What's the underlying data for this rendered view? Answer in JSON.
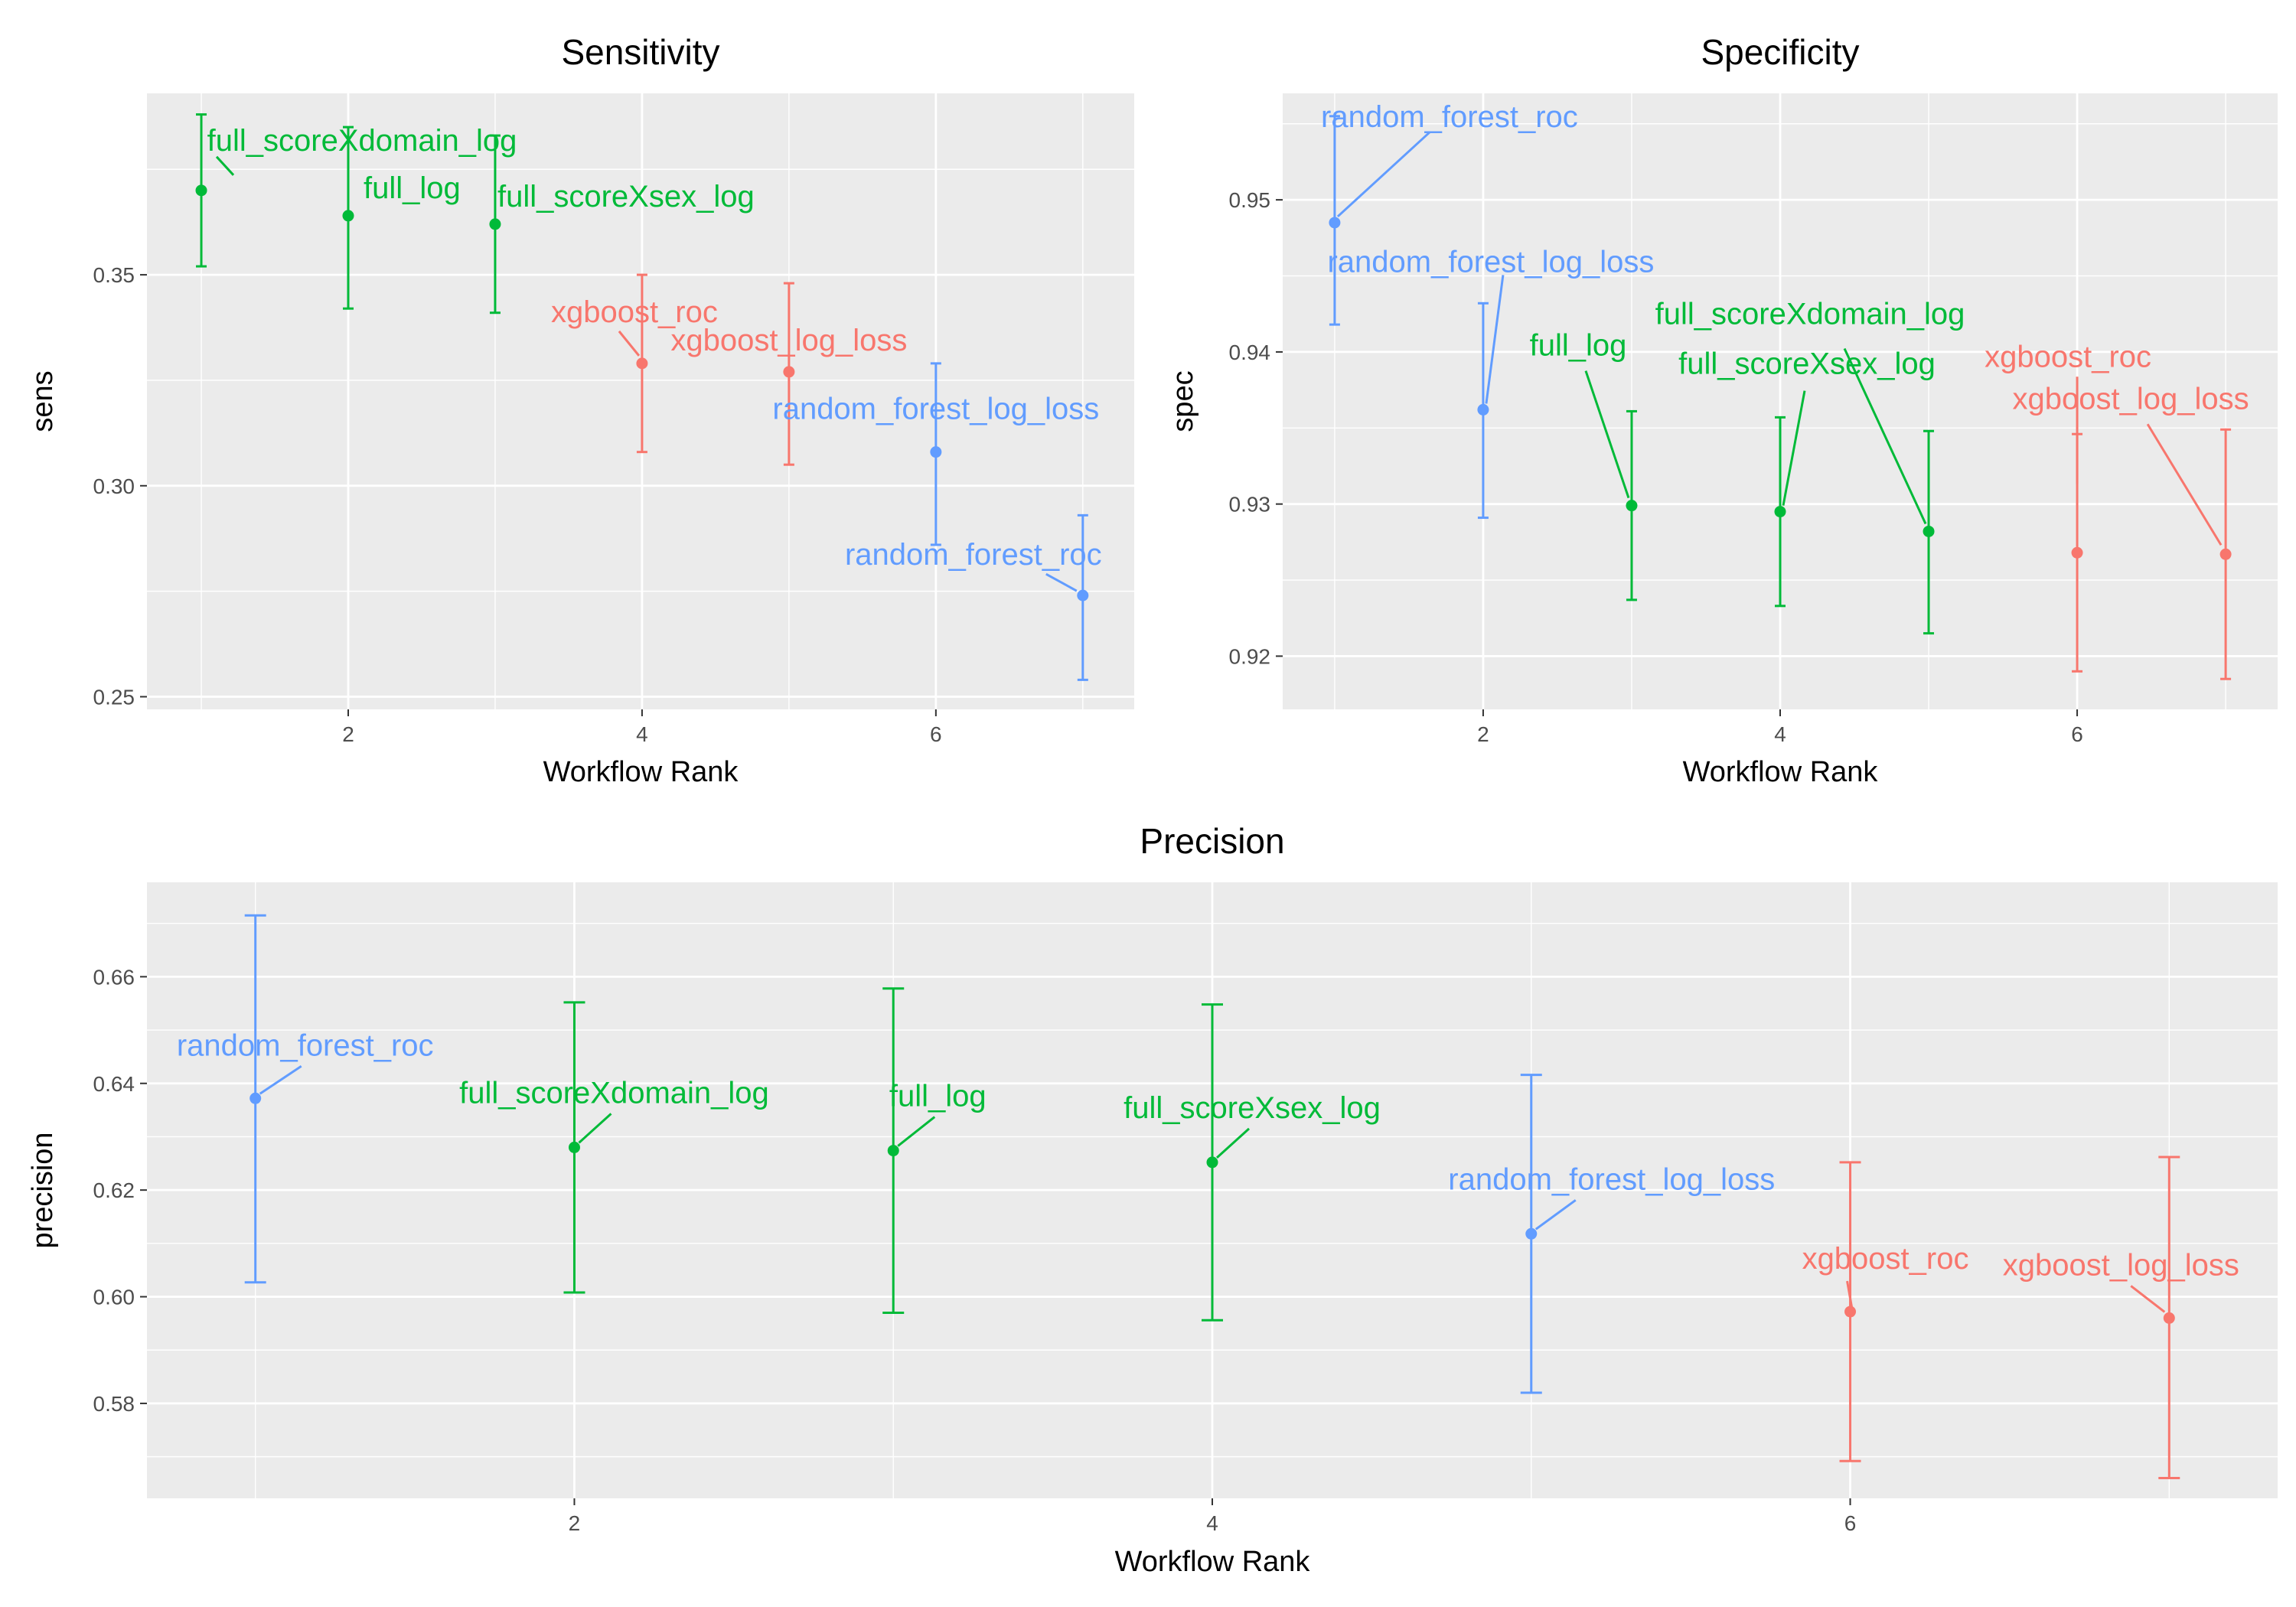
{
  "colors": {
    "panel_bg": "#EBEBEB",
    "grid": "#FFFFFF",
    "axis_text": "#4D4D4D",
    "text": "#000000",
    "model_colors": {
      "full": "#00BA38",
      "random_forest": "#619CFF",
      "xgboost": "#F8766D"
    }
  },
  "chart_data": [
    {
      "type": "scatter",
      "title": "Sensitivity",
      "xlabel": "Workflow Rank",
      "ylabel": "sens",
      "xlim": [
        0.63,
        7.35
      ],
      "ylim": [
        0.247,
        0.393
      ],
      "x_ticks": [
        2,
        4,
        6
      ],
      "x_tick_labels": [
        "2",
        "4",
        "6"
      ],
      "y_ticks": [
        0.25,
        0.3,
        0.35
      ],
      "y_tick_labels": [
        "0.25",
        "0.30",
        "0.35"
      ],
      "grid": true,
      "points": [
        {
          "x": 1,
          "y": 0.37,
          "lower": 0.352,
          "upper": 0.388,
          "label": "full_scoreXdomain_log",
          "model": "full"
        },
        {
          "x": 2,
          "y": 0.364,
          "lower": 0.342,
          "upper": 0.385,
          "label": "full_log",
          "model": "full"
        },
        {
          "x": 3,
          "y": 0.362,
          "lower": 0.341,
          "upper": 0.383,
          "label": "full_scoreXsex_log",
          "model": "full"
        },
        {
          "x": 4,
          "y": 0.329,
          "lower": 0.308,
          "upper": 0.35,
          "label": "xgboost_roc",
          "model": "xgboost"
        },
        {
          "x": 5,
          "y": 0.327,
          "lower": 0.305,
          "upper": 0.348,
          "label": "xgboost_log_loss",
          "model": "xgboost"
        },
        {
          "x": 6,
          "y": 0.308,
          "lower": 0.286,
          "upper": 0.329,
          "label": "random_forest_log_loss",
          "model": "random_forest"
        },
        {
          "x": 7,
          "y": 0.274,
          "lower": 0.254,
          "upper": 0.293,
          "label": "random_forest_roc",
          "model": "random_forest"
        }
      ]
    },
    {
      "type": "scatter",
      "title": "Specificity",
      "xlabel": "Workflow Rank",
      "ylabel": "spec",
      "xlim": [
        0.65,
        7.35
      ],
      "ylim": [
        0.9165,
        0.957
      ],
      "x_ticks": [
        2,
        4,
        6
      ],
      "x_tick_labels": [
        "2",
        "4",
        "6"
      ],
      "y_ticks": [
        0.92,
        0.93,
        0.94,
        0.95
      ],
      "y_tick_labels": [
        "0.92",
        "0.93",
        "0.94",
        "0.95"
      ],
      "grid": true,
      "points": [
        {
          "x": 1,
          "y": 0.9485,
          "lower": 0.9418,
          "upper": 0.9555,
          "label": "random_forest_roc",
          "model": "random_forest"
        },
        {
          "x": 2,
          "y": 0.9362,
          "lower": 0.9291,
          "upper": 0.9432,
          "label": "random_forest_log_loss",
          "model": "random_forest"
        },
        {
          "x": 3,
          "y": 0.9299,
          "lower": 0.9237,
          "upper": 0.9361,
          "label": "full_log",
          "model": "full"
        },
        {
          "x": 4,
          "y": 0.9295,
          "lower": 0.9233,
          "upper": 0.9357,
          "label": "full_scoreXsex_log",
          "model": "full"
        },
        {
          "x": 5,
          "y": 0.9282,
          "lower": 0.9215,
          "upper": 0.9348,
          "label": "full_scoreXdomain_log",
          "model": "full"
        },
        {
          "x": 6,
          "y": 0.9268,
          "lower": 0.919,
          "upper": 0.9346,
          "label": "xgboost_roc",
          "model": "xgboost"
        },
        {
          "x": 7,
          "y": 0.9267,
          "lower": 0.9185,
          "upper": 0.9349,
          "label": "xgboost_log_loss",
          "model": "xgboost"
        }
      ]
    },
    {
      "type": "scatter",
      "title": "Precision",
      "xlabel": "Workflow Rank",
      "ylabel": "precision",
      "xlim": [
        0.66,
        7.34
      ],
      "ylim": [
        0.5622,
        0.6777
      ],
      "x_ticks": [
        2,
        4,
        6
      ],
      "x_tick_labels": [
        "2",
        "4",
        "6"
      ],
      "y_ticks": [
        0.58,
        0.6,
        0.62,
        0.64,
        0.66
      ],
      "y_tick_labels": [
        "0.58",
        "0.60",
        "0.62",
        "0.64",
        "0.66"
      ],
      "grid": true,
      "points": [
        {
          "x": 1,
          "y": 0.6372,
          "lower": 0.6027,
          "upper": 0.6715,
          "label": "random_forest_roc",
          "model": "random_forest"
        },
        {
          "x": 2,
          "y": 0.628,
          "lower": 0.6008,
          "upper": 0.6552,
          "label": "full_scoreXdomain_log",
          "model": "full"
        },
        {
          "x": 3,
          "y": 0.6274,
          "lower": 0.597,
          "upper": 0.6578,
          "label": "full_log",
          "model": "full"
        },
        {
          "x": 4,
          "y": 0.6252,
          "lower": 0.5956,
          "upper": 0.6548,
          "label": "full_scoreXsex_log",
          "model": "full"
        },
        {
          "x": 5,
          "y": 0.6118,
          "lower": 0.582,
          "upper": 0.6416,
          "label": "random_forest_log_loss",
          "model": "random_forest"
        },
        {
          "x": 6,
          "y": 0.5972,
          "lower": 0.5692,
          "upper": 0.6252,
          "label": "xgboost_roc",
          "model": "xgboost"
        },
        {
          "x": 7,
          "y": 0.596,
          "lower": 0.566,
          "upper": 0.6262,
          "label": "xgboost_log_loss",
          "model": "xgboost"
        }
      ]
    }
  ]
}
